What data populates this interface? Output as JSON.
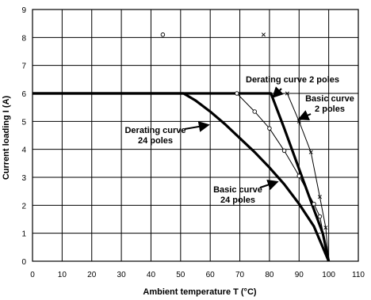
{
  "chart_data": {
    "type": "line",
    "title": "",
    "xlabel": "Ambient temperature T (°C)",
    "ylabel": "Current loading I (A)",
    "xlim": [
      0,
      110
    ],
    "ylim": [
      0,
      9
    ],
    "xticks": [
      0,
      10,
      20,
      30,
      40,
      50,
      60,
      70,
      80,
      90,
      100,
      110
    ],
    "yticks": [
      0,
      1,
      2,
      3,
      4,
      5,
      6,
      7,
      8,
      9
    ],
    "grid": true,
    "legend": "none",
    "series": [
      {
        "key": "derating24",
        "style": "thick",
        "x": [
          0,
          51,
          55,
          60,
          65,
          70,
          75,
          80,
          85,
          90,
          95,
          100
        ],
        "y": [
          6,
          6,
          5.75,
          5.35,
          4.9,
          4.4,
          3.9,
          3.35,
          2.75,
          2.05,
          1.25,
          0
        ]
      },
      {
        "key": "basic24",
        "style": "thin",
        "marker": "circle",
        "x": [
          69,
          75,
          80,
          85,
          90,
          95,
          97,
          100
        ],
        "y": [
          6,
          5.35,
          4.75,
          3.95,
          3.05,
          2.05,
          1.6,
          0
        ]
      },
      {
        "key": "derating2",
        "style": "thick",
        "x": [
          0,
          80.5,
          85,
          90,
          95,
          98,
          100
        ],
        "y": [
          6,
          6,
          4.75,
          3.3,
          1.85,
          1.0,
          0
        ]
      },
      {
        "key": "basic2",
        "style": "thin",
        "marker": "x",
        "x": [
          86,
          90,
          94,
          97,
          99,
          100
        ],
        "y": [
          6,
          5.0,
          3.9,
          2.3,
          1.2,
          0
        ]
      }
    ],
    "annotations": [
      {
        "key": "derating2",
        "lines": [
          "Derating curve 2 poles"
        ]
      },
      {
        "key": "basic2",
        "lines": [
          "Basic curve",
          "2 poles"
        ]
      },
      {
        "key": "derating24",
        "lines": [
          "Derating curve",
          "24 poles"
        ]
      },
      {
        "key": "basic24",
        "lines": [
          "Basic curve",
          "24 poles"
        ]
      }
    ],
    "legend_markers": [
      {
        "marker": "circle",
        "x": 44,
        "y": 8.1
      },
      {
        "marker": "x",
        "x": 78,
        "y": 8.1
      }
    ]
  }
}
